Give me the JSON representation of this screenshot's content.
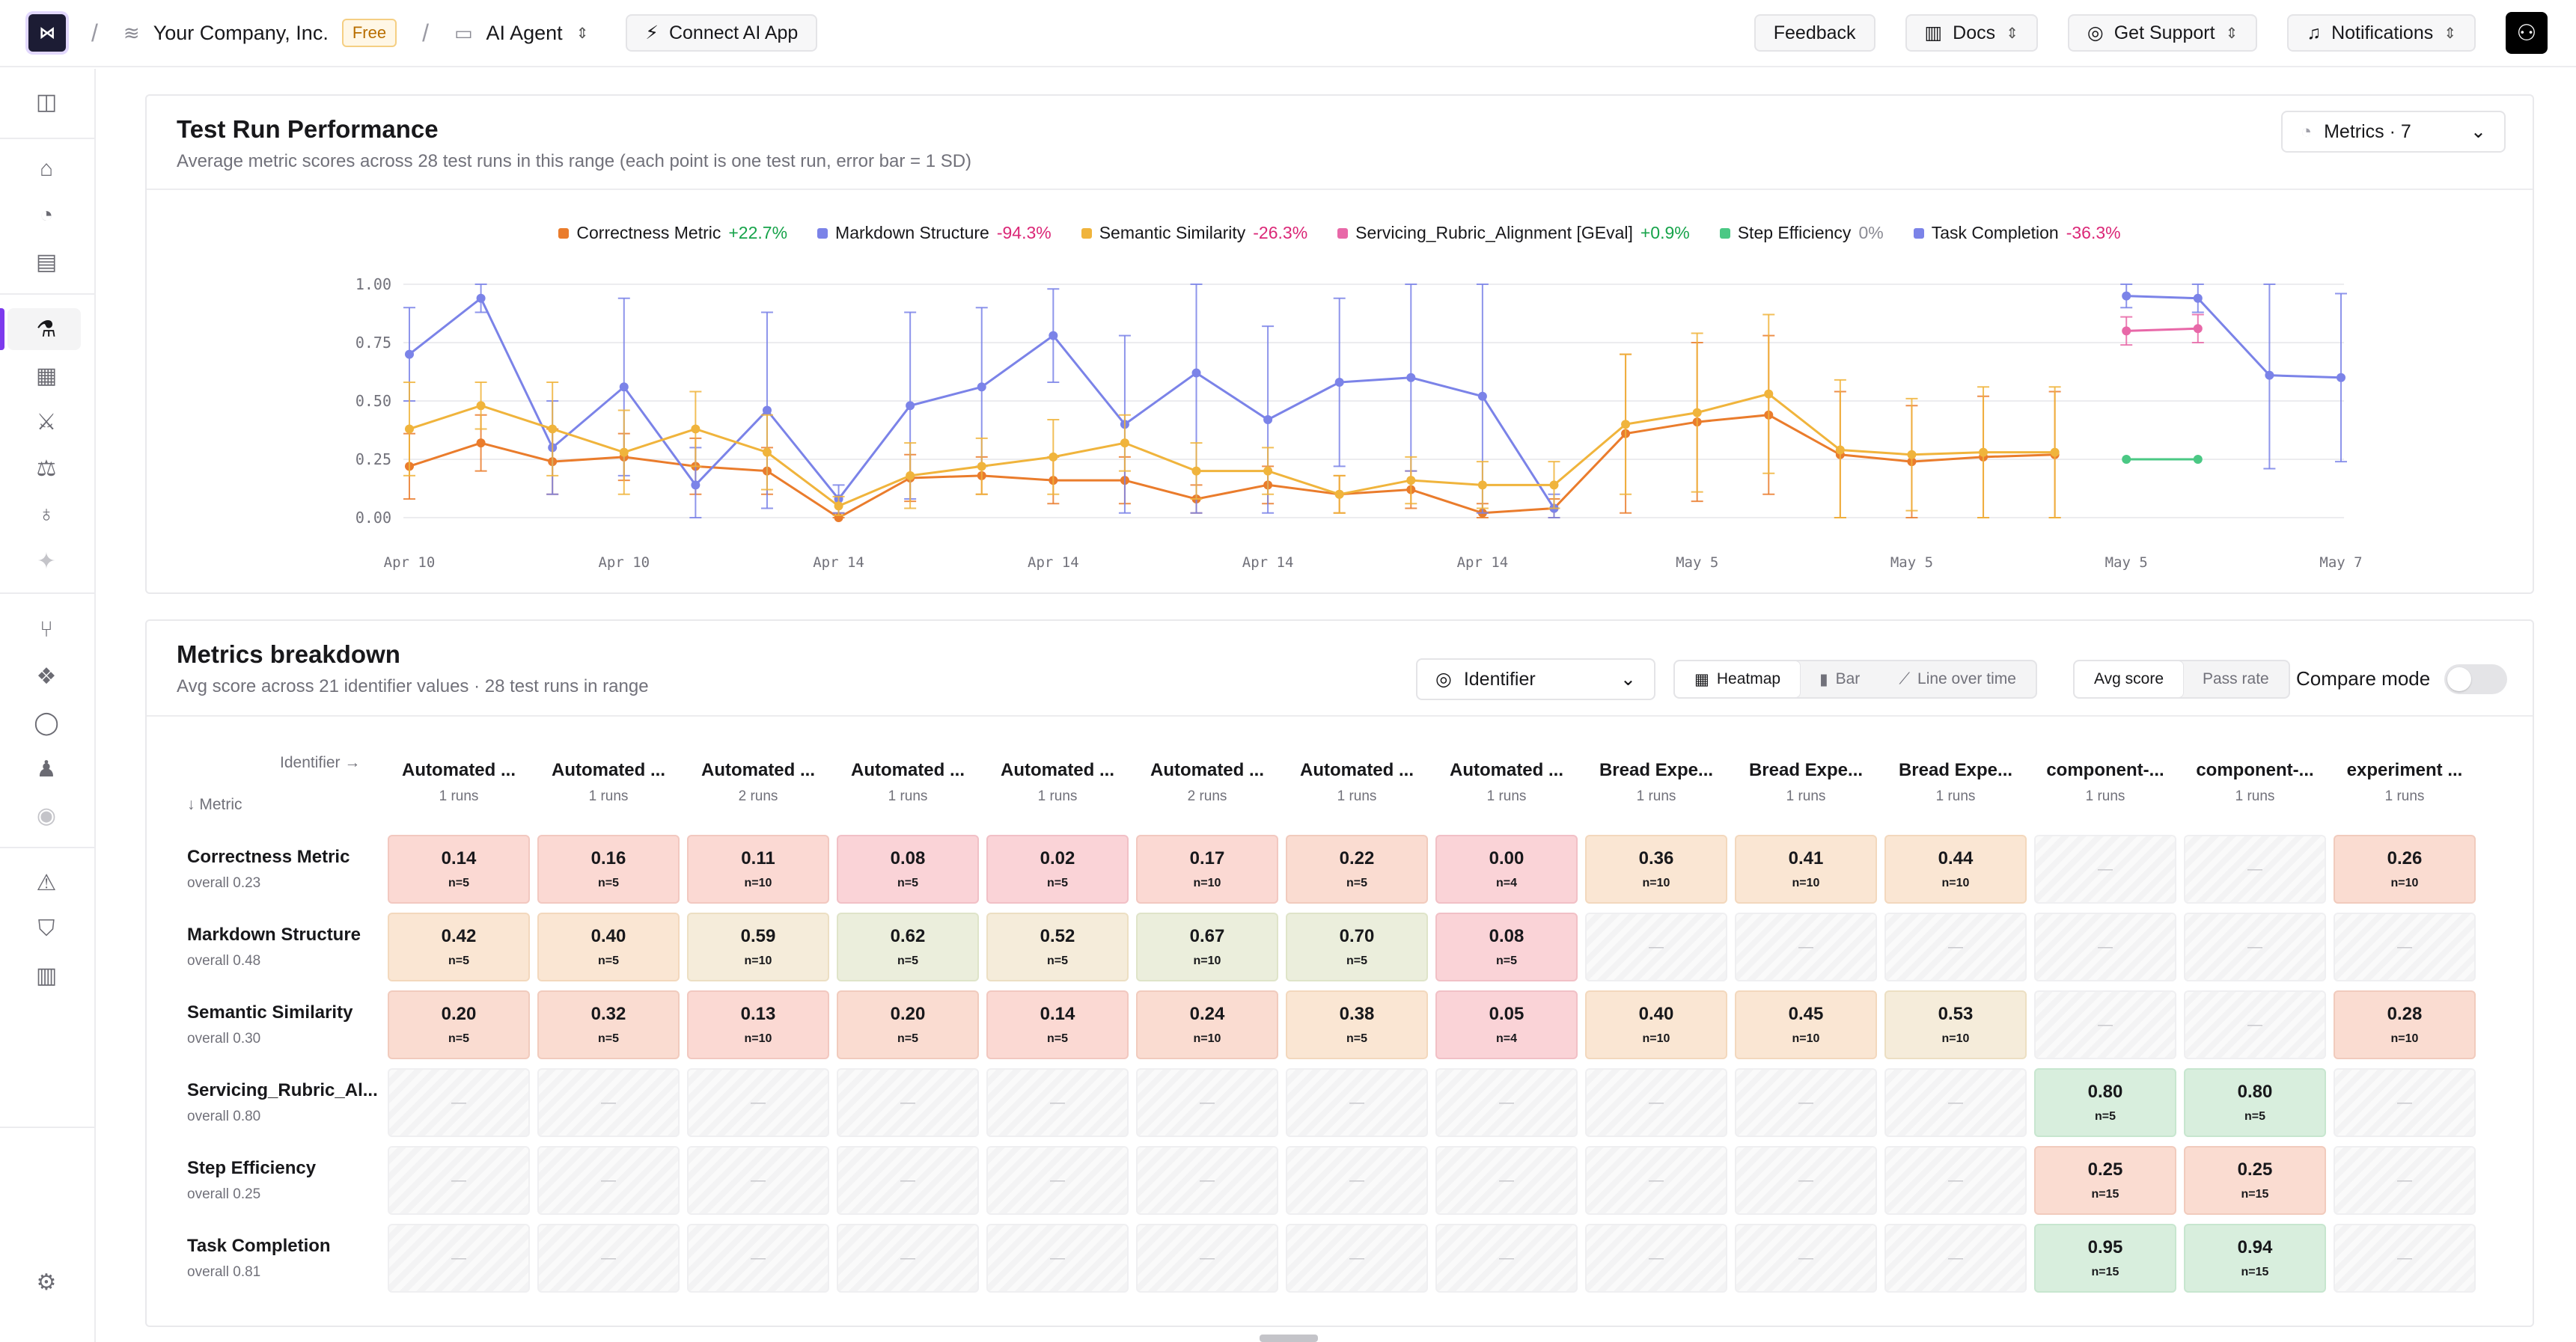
{
  "header": {
    "org": "Your Company, Inc.",
    "plan_badge": "Free",
    "project": "AI Agent",
    "connect_button": "Connect AI App",
    "feedback": "Feedback",
    "docs": "Docs",
    "support": "Get Support",
    "notifications": "Notifications"
  },
  "performance": {
    "title": "Test Run Performance",
    "subtitle": "Average metric scores across 28 test runs in this range (each point is one test run, error bar = 1 SD)",
    "metrics_select": "Metrics · 7",
    "legend": [
      {
        "name": "Correctness Metric",
        "change": "+22.7%",
        "color": "#ea7c2c",
        "tone": "pos"
      },
      {
        "name": "Markdown Structure",
        "change": "-94.3%",
        "color": "#7b83e8",
        "tone": "neg"
      },
      {
        "name": "Semantic Similarity",
        "change": "-26.3%",
        "color": "#f0b43c",
        "tone": "neg"
      },
      {
        "name": "Servicing_Rubric_Alignment [GEval]",
        "change": "+0.9%",
        "color": "#e868a8",
        "tone": "pos"
      },
      {
        "name": "Step Efficiency",
        "change": "0%",
        "color": "#4ac884",
        "tone": "zero"
      },
      {
        "name": "Task Completion",
        "change": "-36.3%",
        "color": "#7b83e8",
        "tone": "neg"
      }
    ]
  },
  "chart_data": {
    "type": "line",
    "x_tick_labels": [
      "Apr 10",
      "Apr 10",
      "Apr 14",
      "Apr 14",
      "Apr 14",
      "Apr 14",
      "May 5",
      "May 5",
      "May 5",
      "May 7"
    ],
    "y_tick_labels": [
      "1.00",
      "0.75",
      "0.50",
      "0.25",
      "0.00"
    ],
    "ylim": [
      0,
      1
    ],
    "n_runs": 28,
    "series": [
      {
        "name": "Correctness Metric",
        "color": "#ea7c2c",
        "values": [
          0.22,
          0.32,
          0.24,
          0.26,
          0.22,
          0.2,
          0.0,
          0.17,
          0.18,
          0.16,
          0.16,
          0.08,
          0.14,
          0.1,
          0.12,
          0.02,
          0.04,
          0.36,
          0.41,
          0.44,
          0.27,
          0.24,
          0.26,
          0.27,
          null,
          null,
          null,
          null
        ],
        "sd": [
          0.14,
          0.12,
          0.14,
          0.1,
          0.12,
          0.1,
          0.02,
          0.1,
          0.08,
          0.1,
          0.1,
          0.06,
          0.08,
          0.08,
          0.08,
          0.04,
          0.04,
          0.34,
          0.34,
          0.34,
          0.27,
          0.24,
          0.26,
          0.27,
          null,
          null,
          null,
          null
        ]
      },
      {
        "name": "Markdown Structure",
        "color": "#7b83e8",
        "values": [
          0.7,
          0.94,
          0.3,
          0.56,
          0.14,
          0.46,
          0.08,
          0.48,
          0.56,
          0.78,
          0.4,
          0.62,
          0.42,
          0.58,
          0.6,
          0.52,
          0.04,
          null,
          null,
          null,
          null,
          null,
          null,
          null,
          0.95,
          0.94,
          0.61,
          0.6
        ],
        "sd": [
          0.2,
          0.06,
          0.2,
          0.38,
          0.16,
          0.42,
          0.06,
          0.4,
          0.34,
          0.2,
          0.38,
          0.6,
          0.4,
          0.36,
          0.4,
          0.5,
          0.06,
          null,
          null,
          null,
          null,
          null,
          null,
          null,
          0.05,
          0.06,
          0.4,
          0.36
        ]
      },
      {
        "name": "Semantic Similarity",
        "color": "#f0b43c",
        "values": [
          0.38,
          0.48,
          0.38,
          0.28,
          0.38,
          0.28,
          0.05,
          0.18,
          0.22,
          0.26,
          0.32,
          0.2,
          0.2,
          0.1,
          0.16,
          0.14,
          0.14,
          0.4,
          0.45,
          0.53,
          0.29,
          0.27,
          0.28,
          0.28,
          null,
          null,
          null,
          null
        ],
        "sd": [
          0.2,
          0.1,
          0.2,
          0.18,
          0.16,
          0.16,
          0.04,
          0.14,
          0.12,
          0.16,
          0.12,
          0.12,
          0.1,
          0.08,
          0.1,
          0.1,
          0.1,
          0.3,
          0.34,
          0.34,
          0.3,
          0.24,
          0.28,
          0.28,
          null,
          null,
          null,
          null
        ]
      },
      {
        "name": "Servicing_Rubric_Alignment [GEval]",
        "color": "#e868a8",
        "values": [
          null,
          null,
          null,
          null,
          null,
          null,
          null,
          null,
          null,
          null,
          null,
          null,
          null,
          null,
          null,
          null,
          null,
          null,
          null,
          null,
          null,
          null,
          null,
          null,
          0.8,
          0.81,
          null,
          null
        ],
        "sd": [
          null,
          null,
          null,
          null,
          null,
          null,
          null,
          null,
          null,
          null,
          null,
          null,
          null,
          null,
          null,
          null,
          null,
          null,
          null,
          null,
          null,
          null,
          null,
          null,
          0.06,
          0.06,
          null,
          null
        ]
      },
      {
        "name": "Step Efficiency",
        "color": "#4ac884",
        "values": [
          null,
          null,
          null,
          null,
          null,
          null,
          null,
          null,
          null,
          null,
          null,
          null,
          null,
          null,
          null,
          null,
          null,
          null,
          null,
          null,
          null,
          null,
          null,
          null,
          0.25,
          0.25,
          null,
          null
        ],
        "sd": [
          null,
          null,
          null,
          null,
          null,
          null,
          null,
          null,
          null,
          null,
          null,
          null,
          null,
          null,
          null,
          null,
          null,
          null,
          null,
          null,
          null,
          null,
          null,
          null,
          0,
          0,
          null,
          null
        ]
      }
    ]
  },
  "breakdown": {
    "title": "Metrics breakdown",
    "subtitle": "Avg score across 21 identifier values · 28 test runs in range",
    "identifier_select": "Identifier",
    "views": [
      "Heatmap",
      "Bar",
      "Line over time"
    ],
    "active_view": "Heatmap",
    "score_modes": [
      "Avg score",
      "Pass rate"
    ],
    "active_score_mode": "Avg score",
    "compare_mode": "Compare mode",
    "identifier_axis": "Identifier →",
    "metric_axis": "↓ Metric",
    "columns": [
      {
        "name": "Automated ...",
        "runs": "1 runs"
      },
      {
        "name": "Automated ...",
        "runs": "1 runs"
      },
      {
        "name": "Automated ...",
        "runs": "2 runs"
      },
      {
        "name": "Automated ...",
        "runs": "1 runs"
      },
      {
        "name": "Automated ...",
        "runs": "1 runs"
      },
      {
        "name": "Automated ...",
        "runs": "2 runs"
      },
      {
        "name": "Automated ...",
        "runs": "1 runs"
      },
      {
        "name": "Automated ...",
        "runs": "1 runs"
      },
      {
        "name": "Bread Expe...",
        "runs": "1 runs"
      },
      {
        "name": "Bread Expe...",
        "runs": "1 runs"
      },
      {
        "name": "Bread Expe...",
        "runs": "1 runs"
      },
      {
        "name": "component-...",
        "runs": "1 runs"
      },
      {
        "name": "component-...",
        "runs": "1 runs"
      },
      {
        "name": "experiment ...",
        "runs": "1 runs"
      }
    ],
    "rows": [
      {
        "metric": "Correctness Metric",
        "overall": "overall 0.23",
        "cells": [
          [
            "0.14",
            "n=5"
          ],
          [
            "0.16",
            "n=5"
          ],
          [
            "0.11",
            "n=10"
          ],
          [
            "0.08",
            "n=5"
          ],
          [
            "0.02",
            "n=5"
          ],
          [
            "0.17",
            "n=10"
          ],
          [
            "0.22",
            "n=5"
          ],
          [
            "0.00",
            "n=4"
          ],
          [
            "0.36",
            "n=10"
          ],
          [
            "0.41",
            "n=10"
          ],
          [
            "0.44",
            "n=10"
          ],
          null,
          null,
          [
            "0.26",
            "n=10"
          ]
        ]
      },
      {
        "metric": "Markdown Structure",
        "overall": "overall 0.48",
        "cells": [
          [
            "0.42",
            "n=5"
          ],
          [
            "0.40",
            "n=5"
          ],
          [
            "0.59",
            "n=10"
          ],
          [
            "0.62",
            "n=5"
          ],
          [
            "0.52",
            "n=5"
          ],
          [
            "0.67",
            "n=10"
          ],
          [
            "0.70",
            "n=5"
          ],
          [
            "0.08",
            "n=5"
          ],
          null,
          null,
          null,
          null,
          null,
          null
        ]
      },
      {
        "metric": "Semantic Similarity",
        "overall": "overall 0.30",
        "cells": [
          [
            "0.20",
            "n=5"
          ],
          [
            "0.32",
            "n=5"
          ],
          [
            "0.13",
            "n=10"
          ],
          [
            "0.20",
            "n=5"
          ],
          [
            "0.14",
            "n=5"
          ],
          [
            "0.24",
            "n=10"
          ],
          [
            "0.38",
            "n=5"
          ],
          [
            "0.05",
            "n=4"
          ],
          [
            "0.40",
            "n=10"
          ],
          [
            "0.45",
            "n=10"
          ],
          [
            "0.53",
            "n=10"
          ],
          null,
          null,
          [
            "0.28",
            "n=10"
          ]
        ]
      },
      {
        "metric": "Servicing_Rubric_Al...",
        "overall": "overall 0.80",
        "cells": [
          null,
          null,
          null,
          null,
          null,
          null,
          null,
          null,
          null,
          null,
          null,
          [
            "0.80",
            "n=5"
          ],
          [
            "0.80",
            "n=5"
          ],
          null
        ]
      },
      {
        "metric": "Step Efficiency",
        "overall": "overall 0.25",
        "cells": [
          null,
          null,
          null,
          null,
          null,
          null,
          null,
          null,
          null,
          null,
          null,
          [
            "0.25",
            "n=15"
          ],
          [
            "0.25",
            "n=15"
          ],
          null
        ]
      },
      {
        "metric": "Task Completion",
        "overall": "overall 0.81",
        "cells": [
          null,
          null,
          null,
          null,
          null,
          null,
          null,
          null,
          null,
          null,
          null,
          [
            "0.95",
            "n=15"
          ],
          [
            "0.94",
            "n=15"
          ],
          null
        ]
      }
    ],
    "empty_mark": "—"
  }
}
